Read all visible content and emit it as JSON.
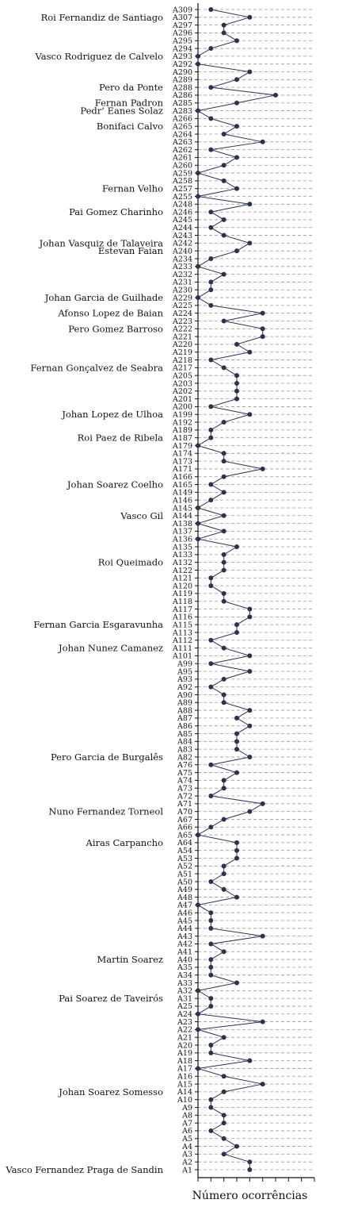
{
  "chart_data": {
    "type": "line",
    "xlabel": "Número ocorrências",
    "ylabel": "",
    "xlim": [
      0,
      9
    ],
    "grid": "horizontal dashed",
    "line_color": "#2a3350",
    "categories": [
      "A309",
      "A307",
      "A297",
      "A296",
      "A295",
      "A294",
      "A293",
      "A292",
      "A290",
      "A289",
      "A288",
      "A286",
      "A285",
      "A283",
      "A266",
      "A265",
      "A264",
      "A263",
      "A262",
      "A261",
      "A260",
      "A259",
      "A258",
      "A257",
      "A255",
      "A248",
      "A246",
      "A245",
      "A244",
      "A243",
      "A242",
      "A240",
      "A234",
      "A233",
      "A232",
      "A231",
      "A230",
      "A229",
      "A225",
      "A224",
      "A223",
      "A222",
      "A221",
      "A220",
      "A219",
      "A218",
      "A217",
      "A205",
      "A203",
      "A202",
      "A201",
      "A200",
      "A199",
      "A192",
      "A189",
      "A187",
      "A179",
      "A174",
      "A173",
      "A171",
      "A166",
      "A165",
      "A149",
      "A146",
      "A145",
      "A144",
      "A138",
      "A137",
      "A136",
      "A135",
      "A133",
      "A132",
      "A122",
      "A121",
      "A120",
      "A119",
      "A118",
      "A117",
      "A116",
      "A115",
      "A113",
      "A112",
      "A111",
      "A101",
      "A99",
      "A95",
      "A93",
      "A92",
      "A90",
      "A89",
      "A88",
      "A87",
      "A86",
      "A85",
      "A84",
      "A83",
      "A82",
      "A76",
      "A75",
      "A74",
      "A73",
      "A72",
      "A71",
      "A70",
      "A67",
      "A66",
      "A65",
      "A64",
      "A54",
      "A53",
      "A52",
      "A51",
      "A50",
      "A49",
      "A48",
      "A47",
      "A46",
      "A45",
      "A44",
      "A43",
      "A42",
      "A41",
      "A40",
      "A35",
      "A34",
      "A33",
      "A32",
      "A31",
      "A25",
      "A24",
      "A23",
      "A22",
      "A21",
      "A20",
      "A19",
      "A18",
      "A17",
      "A16",
      "A15",
      "A14",
      "A10",
      "A9",
      "A8",
      "A7",
      "A6",
      "A5",
      "A4",
      "A3",
      "A2",
      "A1"
    ],
    "values": [
      1,
      4,
      2,
      2,
      3,
      1,
      0,
      0,
      4,
      3,
      1,
      6,
      3,
      0,
      1,
      3,
      2,
      5,
      1,
      3,
      2,
      0,
      2,
      3,
      0,
      4,
      1,
      2,
      1,
      2,
      4,
      3,
      1,
      0,
      2,
      1,
      1,
      0,
      1,
      5,
      2,
      5,
      5,
      3,
      4,
      1,
      2,
      3,
      3,
      3,
      3,
      1,
      4,
      2,
      1,
      1,
      0,
      2,
      2,
      5,
      2,
      1,
      2,
      1,
      0,
      2,
      0,
      2,
      0,
      3,
      2,
      2,
      2,
      1,
      1,
      2,
      2,
      4,
      4,
      3,
      3,
      1,
      2,
      4,
      1,
      4,
      2,
      1,
      2,
      2,
      4,
      3,
      4,
      3,
      3,
      3,
      4,
      1,
      3,
      2,
      2,
      1,
      5,
      4,
      2,
      1,
      0,
      3,
      3,
      3,
      2,
      2,
      1,
      2,
      3,
      0,
      1,
      1,
      1,
      5,
      1,
      2,
      1,
      1,
      1,
      3,
      0,
      1,
      1,
      0,
      5,
      0,
      2,
      1,
      1,
      4,
      0,
      2,
      5,
      2,
      1,
      1,
      2,
      2,
      1,
      2,
      3,
      2,
      4,
      4
    ],
    "annotations": [
      {
        "text": "Roi Fernandiz de Santiago",
        "at": "A307"
      },
      {
        "text": "Vasco Rodriguez de Calvelo",
        "at": "A293"
      },
      {
        "text": "Pero da Ponte",
        "at": "A288"
      },
      {
        "text": "Fernan Padron",
        "at": "A285"
      },
      {
        "text": "Pedr’ Eanes Solaz",
        "at": "A283"
      },
      {
        "text": "Bonifaci Calvo",
        "at": "A265"
      },
      {
        "text": "Fernan Velho",
        "at": "A257"
      },
      {
        "text": "Pai Gomez Charinho",
        "at": "A246"
      },
      {
        "text": "Johan Vasquiz de Talaveira",
        "at": "A242"
      },
      {
        "text": "Estevan Faian",
        "at": "A240"
      },
      {
        "text": "Johan Garcia de Guilhade",
        "at": "A229"
      },
      {
        "text": "Afonso Lopez de Baian",
        "at": "A224"
      },
      {
        "text": "Pero Gomez Barroso",
        "at": "A222"
      },
      {
        "text": "Fernan Gonçalvez de Seabra",
        "at": "A217"
      },
      {
        "text": "Johan Lopez de Ulhoa",
        "at": "A199"
      },
      {
        "text": "Roi Paez de Ribela",
        "at": "A187"
      },
      {
        "text": "Johan Soarez Coelho",
        "at": "A165"
      },
      {
        "text": "Vasco Gil",
        "at": "A144"
      },
      {
        "text": "Roi Queimado",
        "at": "A132"
      },
      {
        "text": "Fernan Garcia Esgaravunha",
        "at": "A115"
      },
      {
        "text": "Johan Nunez Camanez",
        "at": "A111"
      },
      {
        "text": "Pero Garcia de Burgalês",
        "at": "A82"
      },
      {
        "text": "Nuno Fernandez Torneol",
        "at": "A70"
      },
      {
        "text": "Airas Carpancho",
        "at": "A64"
      },
      {
        "text": "Martin Soarez",
        "at": "A40"
      },
      {
        "text": "Pai Soarez de Taveirós",
        "at": "A31"
      },
      {
        "text": "Johan Soarez Somesso",
        "at": "A14"
      },
      {
        "text": "Vasco Fernandez Praga de Sandin",
        "at": "A1"
      }
    ]
  }
}
